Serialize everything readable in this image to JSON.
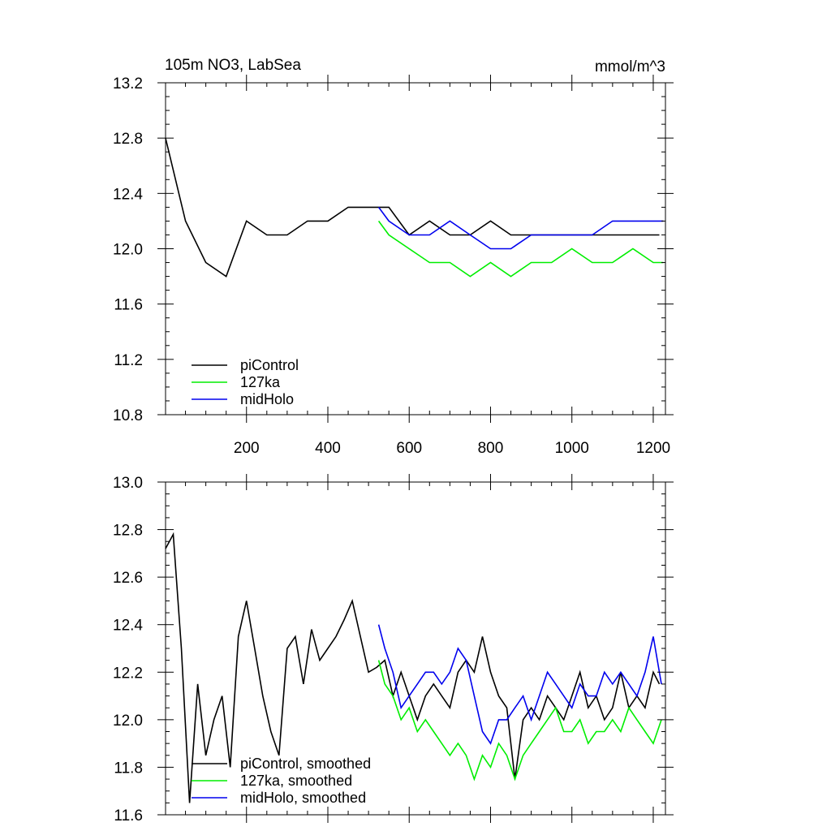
{
  "chart_data": [
    {
      "type": "line",
      "title": "105m NO3, LabSea",
      "units": "mmol/m^3",
      "xlim": [
        1,
        1230
      ],
      "ylim": [
        10.8,
        13.2
      ],
      "x_ticks": [
        200,
        400,
        600,
        800,
        1000,
        1200
      ],
      "y_ticks": [
        13.2,
        12.8,
        12.4,
        12.0,
        11.6,
        11.2,
        10.8
      ],
      "y_tick_labels": [
        "13.2",
        "12.8",
        "12.4",
        "12.0",
        "11.6",
        "11.2",
        "10.8"
      ],
      "x_tick_labels": [
        "200",
        "400",
        "600",
        "800",
        "1000",
        "1200"
      ],
      "legend_position": "bottom-left",
      "series": [
        {
          "name": "piControl",
          "color": "#000000",
          "x": [
            1,
            50,
            100,
            150,
            200,
            250,
            300,
            350,
            400,
            450,
            500,
            550,
            600,
            650,
            700,
            750,
            800,
            850,
            900,
            950,
            1000,
            1050,
            1100,
            1150,
            1200,
            1215
          ],
          "y": [
            12.8,
            12.2,
            11.9,
            11.8,
            12.2,
            12.1,
            12.1,
            12.2,
            12.2,
            12.3,
            12.3,
            12.3,
            12.1,
            12.2,
            12.1,
            12.1,
            12.2,
            12.1,
            12.1,
            12.1,
            12.1,
            12.1,
            12.1,
            12.1,
            12.1,
            12.1
          ]
        },
        {
          "name": "127ka",
          "color": "#00ee00",
          "x": [
            525,
            550,
            600,
            650,
            700,
            750,
            800,
            850,
            900,
            950,
            1000,
            1050,
            1100,
            1150,
            1200,
            1225
          ],
          "y": [
            12.2,
            12.1,
            12.0,
            11.9,
            11.9,
            11.8,
            11.9,
            11.8,
            11.9,
            11.9,
            12.0,
            11.9,
            11.9,
            12.0,
            11.9,
            11.9
          ]
        },
        {
          "name": "midHolo",
          "color": "#0000ee",
          "x": [
            525,
            550,
            600,
            650,
            700,
            750,
            800,
            850,
            900,
            950,
            1000,
            1050,
            1100,
            1150,
            1200,
            1225
          ],
          "y": [
            12.3,
            12.2,
            12.1,
            12.1,
            12.2,
            12.1,
            12.0,
            12.0,
            12.1,
            12.1,
            12.1,
            12.1,
            12.2,
            12.2,
            12.2,
            12.2
          ]
        }
      ]
    },
    {
      "type": "line",
      "xlim": [
        1,
        1230
      ],
      "ylim": [
        11.6,
        13.0
      ],
      "x_ticks": [
        200,
        400,
        600,
        800,
        1000,
        1200
      ],
      "y_ticks": [
        13.0,
        12.8,
        12.6,
        12.4,
        12.2,
        12.0,
        11.8,
        11.6
      ],
      "y_tick_labels": [
        "13.0",
        "12.8",
        "12.6",
        "12.4",
        "12.2",
        "12.0",
        "11.8",
        "11.6"
      ],
      "legend_position": "bottom-left",
      "series": [
        {
          "name": "piControl, smoothed",
          "color": "#000000",
          "x": [
            1,
            20,
            40,
            60,
            80,
            100,
            120,
            140,
            160,
            180,
            200,
            220,
            240,
            260,
            280,
            300,
            320,
            340,
            360,
            380,
            400,
            420,
            440,
            460,
            480,
            500,
            520,
            540,
            560,
            580,
            600,
            620,
            640,
            660,
            680,
            700,
            720,
            740,
            760,
            780,
            800,
            820,
            840,
            860,
            880,
            900,
            920,
            940,
            960,
            980,
            1000,
            1020,
            1040,
            1060,
            1080,
            1100,
            1120,
            1140,
            1160,
            1180,
            1200,
            1215
          ],
          "y": [
            12.72,
            12.78,
            12.3,
            11.65,
            12.15,
            11.85,
            12.0,
            12.1,
            11.8,
            12.35,
            12.5,
            12.3,
            12.1,
            11.95,
            11.85,
            12.3,
            12.35,
            12.15,
            12.38,
            12.25,
            12.3,
            12.35,
            12.42,
            12.5,
            12.35,
            12.2,
            12.22,
            12.25,
            12.1,
            12.2,
            12.1,
            12.0,
            12.1,
            12.15,
            12.1,
            12.05,
            12.2,
            12.25,
            12.2,
            12.35,
            12.2,
            12.1,
            12.05,
            11.75,
            12.0,
            12.05,
            12.0,
            12.1,
            12.05,
            12.0,
            12.1,
            12.2,
            12.05,
            12.1,
            12.0,
            12.05,
            12.2,
            12.05,
            12.1,
            12.05,
            12.2,
            12.15
          ]
        },
        {
          "name": "127ka, smoothed",
          "color": "#00ee00",
          "x": [
            525,
            540,
            560,
            580,
            600,
            620,
            640,
            660,
            680,
            700,
            720,
            740,
            760,
            780,
            800,
            820,
            840,
            860,
            880,
            900,
            920,
            940,
            960,
            980,
            1000,
            1020,
            1040,
            1060,
            1080,
            1100,
            1120,
            1140,
            1160,
            1180,
            1200,
            1220
          ],
          "y": [
            12.25,
            12.15,
            12.1,
            12.0,
            12.05,
            11.95,
            12.0,
            11.95,
            11.9,
            11.85,
            11.9,
            11.85,
            11.75,
            11.85,
            11.8,
            11.9,
            11.85,
            11.75,
            11.85,
            11.9,
            11.95,
            12.0,
            12.05,
            11.95,
            11.95,
            12.0,
            11.9,
            11.95,
            11.95,
            12.0,
            11.95,
            12.05,
            12.0,
            11.95,
            11.9,
            12.0
          ]
        },
        {
          "name": "midHolo, smoothed",
          "color": "#0000ee",
          "x": [
            525,
            540,
            560,
            580,
            600,
            620,
            640,
            660,
            680,
            700,
            720,
            740,
            760,
            780,
            800,
            820,
            840,
            860,
            880,
            900,
            920,
            940,
            960,
            980,
            1000,
            1020,
            1040,
            1060,
            1080,
            1100,
            1120,
            1140,
            1160,
            1180,
            1200,
            1220
          ],
          "y": [
            12.4,
            12.3,
            12.2,
            12.05,
            12.1,
            12.15,
            12.2,
            12.2,
            12.15,
            12.2,
            12.3,
            12.25,
            12.1,
            11.95,
            11.9,
            12.0,
            12.0,
            12.05,
            12.1,
            12.0,
            12.1,
            12.2,
            12.15,
            12.1,
            12.05,
            12.15,
            12.1,
            12.1,
            12.2,
            12.15,
            12.2,
            12.15,
            12.1,
            12.2,
            12.35,
            12.15
          ]
        }
      ]
    }
  ]
}
